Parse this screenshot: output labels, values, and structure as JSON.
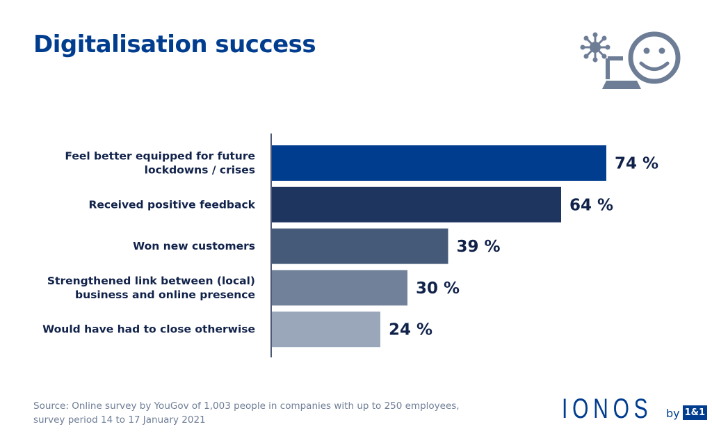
{
  "title": "Digitalisation success",
  "chart_data": {
    "type": "bar",
    "orientation": "horizontal",
    "categories": [
      [
        "Feel better equipped for future",
        "lockdowns / crises"
      ],
      [
        "Received positive feedback"
      ],
      [
        "Won new customers"
      ],
      [
        "Strengthened link between (local)",
        "business and online presence"
      ],
      [
        "Would have had to close otherwise"
      ]
    ],
    "values": [
      74,
      64,
      39,
      30,
      24
    ],
    "data_labels": [
      "74 %",
      "64 %",
      "39 %",
      "30 %",
      "24 %"
    ],
    "colors": [
      "#003d8f",
      "#1e3560",
      "#455a78",
      "#71819a",
      "#9aa7bb"
    ],
    "unit": "%",
    "grid": false
  },
  "source": [
    "Source: Online survey by YouGov of 1,003 people in companies with up to 250 employees,",
    "survey period 14 to 17 January 2021"
  ],
  "logo": {
    "name": "IONOS",
    "by": "by",
    "badge": "1&1"
  },
  "icon": "laptop-smiley-virus-icon",
  "colors": {
    "title": "#003d8f",
    "label": "#11224a",
    "icon": "#6e7d96"
  }
}
